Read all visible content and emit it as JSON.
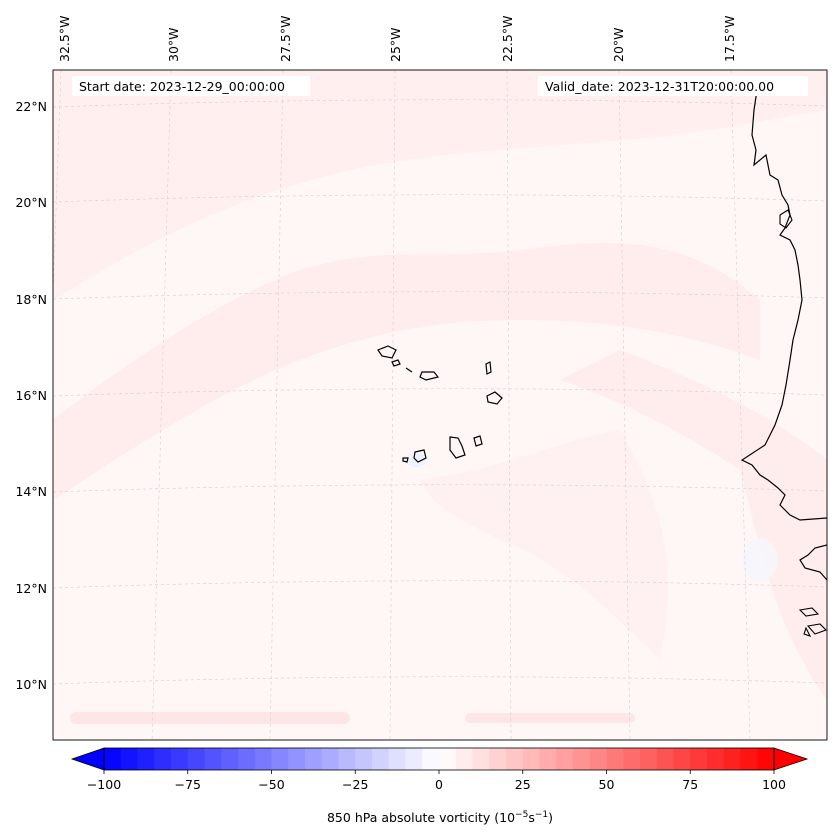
{
  "header": {
    "start_date": "Start date: 2023-12-29_00:00:00",
    "valid_date": "Valid_date: 2023-12-31T20:00:00.00"
  },
  "axes": {
    "lon_labels": [
      "32.5°W",
      "30°W",
      "27.5°W",
      "25°W",
      "22.5°W",
      "20°W",
      "17.5°W"
    ],
    "lat_labels": [
      "22°N",
      "20°N",
      "18°N",
      "16°N",
      "14°N",
      "12°N",
      "10°N"
    ]
  },
  "colorbar": {
    "label": "850 hPa absolute vorticity (10",
    "label_exp1": "−5",
    "label_mid": "s",
    "label_exp2": "−1",
    "label_end": ")",
    "ticks": [
      "−100",
      "−75",
      "−50",
      "−25",
      "0",
      "25",
      "50",
      "75",
      "100"
    ],
    "min": -100,
    "max": 100,
    "colors": {
      "negative": "#0000ff",
      "zero": "#ffffff",
      "positive": "#ff0000"
    }
  },
  "map": {
    "background_color": "#fff5f5",
    "coastline_color": "#000000",
    "gridline_color": "#cccccc"
  }
}
